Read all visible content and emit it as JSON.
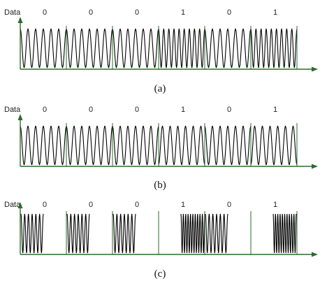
{
  "data_label": "Data",
  "bits": [
    "0",
    "0",
    "0",
    "1",
    "0",
    "1"
  ],
  "colors": {
    "axis": "#2e6b2e",
    "wave": "#000000"
  },
  "panels": [
    {
      "caption": "(a)",
      "modulation": "frequency-shift keying",
      "cycles_per_bit": {
        "0": 6,
        "1": 9
      }
    },
    {
      "caption": "(b)",
      "modulation": "phase-shift keying",
      "cycles_per_bit": {
        "0": 6,
        "1": 6
      }
    },
    {
      "caption": "(c)",
      "modulation": "amplitude (on-off) keying",
      "cycles_per_bit": {
        "0": 6,
        "1": 10
      }
    }
  ]
}
